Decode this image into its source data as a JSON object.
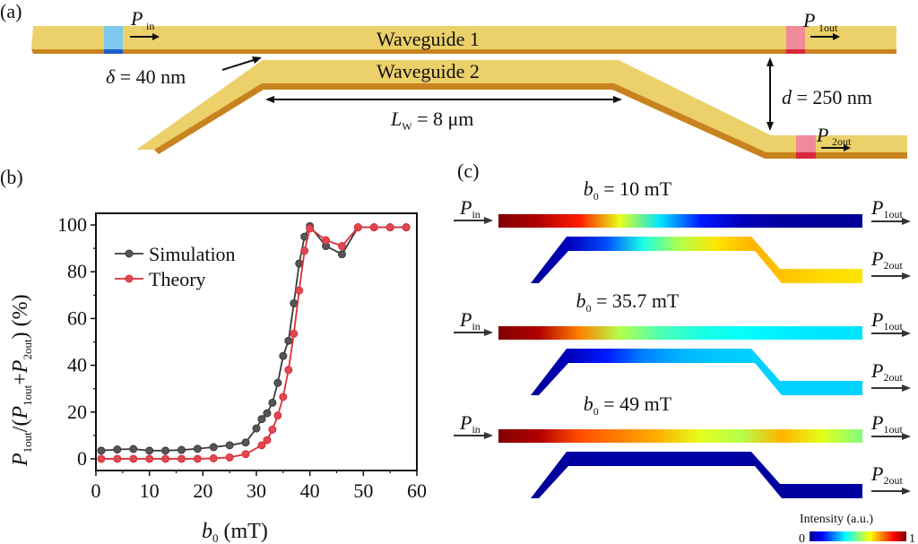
{
  "panels": {
    "a": {
      "label": "(a)",
      "waveguide1_label": "Waveguide 1",
      "waveguide2_label": "Waveguide 2",
      "p_in": {
        "main": "P",
        "sub": "in"
      },
      "p_1out": {
        "main": "P",
        "sub": "1out"
      },
      "p_2out": {
        "main": "P",
        "sub": "2out"
      },
      "delta": {
        "symbol": "δ",
        "text": " = 40 nm"
      },
      "lw": {
        "main": "L",
        "sub": "W",
        "text": " = 8 μm"
      },
      "d": {
        "symbol": "d",
        "text": " = 250 nm"
      },
      "colors": {
        "waveguide_top": "#ECD06A",
        "waveguide_side": "#C8831E",
        "input_port": "#7EC8EE",
        "input_port_dark": "#1F5FC8",
        "output_port": "#F08A9A",
        "output_port_dark": "#D8283A"
      }
    },
    "b": {
      "label": "(b)"
    },
    "c": {
      "label": "(c)",
      "maps": [
        {
          "title_main": "b",
          "title_sub": "0",
          "title_text": " = 10 mT",
          "wg1_profile": [
            1,
            0.95,
            0.85,
            0.6,
            0.35,
            0.15,
            0.05,
            0.02,
            0.01,
            0.01
          ],
          "wg2_profile": [
            0.01,
            0.05,
            0.2,
            0.4,
            0.55,
            0.65,
            0.7,
            0.68,
            0.66,
            0.65
          ]
        },
        {
          "title_main": "b",
          "title_sub": "0",
          "title_text": " = 35.7 mT",
          "wg1_profile": [
            1,
            0.95,
            0.75,
            0.55,
            0.45,
            0.4,
            0.38,
            0.36,
            0.35,
            0.35
          ],
          "wg2_profile": [
            0.01,
            0.05,
            0.15,
            0.25,
            0.3,
            0.32,
            0.33,
            0.33,
            0.33,
            0.33
          ]
        },
        {
          "title_main": "b",
          "title_sub": "0",
          "title_text": " = 49 mT",
          "wg1_profile": [
            1,
            0.95,
            0.8,
            0.75,
            0.7,
            0.6,
            0.55,
            0.7,
            0.6,
            0.5
          ],
          "wg2_profile": [
            0.01,
            0.02,
            0.03,
            0.03,
            0.03,
            0.03,
            0.02,
            0.02,
            0.02,
            0.02
          ]
        }
      ],
      "colorbar": {
        "label": "Intensity (a.u.)",
        "min": "0",
        "max": "1",
        "colormap": "jet"
      }
    }
  },
  "chart_data": {
    "type": "line",
    "title": "",
    "xlabel": {
      "main": "b",
      "sub": "0",
      "text": " (mT)"
    },
    "ylabel": "P1out/(P1out+P2out) (%)",
    "xlim": [
      0,
      60
    ],
    "ylim": [
      -5,
      105
    ],
    "xticks": [
      0,
      10,
      20,
      30,
      40,
      50,
      60
    ],
    "yticks": [
      0,
      20,
      40,
      60,
      80,
      100
    ],
    "grid": false,
    "legend_position": "top-left",
    "series": [
      {
        "name": "Simulation",
        "color": "#3a3a3a",
        "marker_color": "#555555",
        "x": [
          1,
          4,
          7,
          10,
          13,
          16,
          19,
          22,
          25,
          28,
          30,
          31,
          32,
          33,
          34,
          35,
          36,
          37,
          38,
          39,
          40,
          43,
          46,
          49,
          52,
          55,
          58
        ],
        "y": [
          3.5,
          4,
          4.2,
          3.5,
          3.5,
          3.8,
          4.3,
          5,
          5.8,
          7,
          13,
          17,
          19.5,
          24,
          32.5,
          44,
          50.5,
          66.5,
          83.5,
          95,
          99.5,
          91,
          87.5,
          99,
          99,
          99,
          99
        ]
      },
      {
        "name": "Theory",
        "color": "#d8303a",
        "marker_color": "#e04850",
        "x": [
          1,
          4,
          7,
          10,
          13,
          16,
          19,
          22,
          25,
          28,
          31,
          32,
          33,
          34,
          35,
          36,
          37,
          38,
          39,
          40,
          43,
          46,
          49,
          52,
          55,
          58
        ],
        "y": [
          0,
          0,
          0,
          0,
          0,
          0,
          0,
          0.2,
          0.6,
          2,
          5.8,
          8,
          12.5,
          18.5,
          26.5,
          38,
          53.5,
          72,
          89,
          98.5,
          93.5,
          91,
          99,
          99,
          99,
          99
        ]
      }
    ]
  }
}
